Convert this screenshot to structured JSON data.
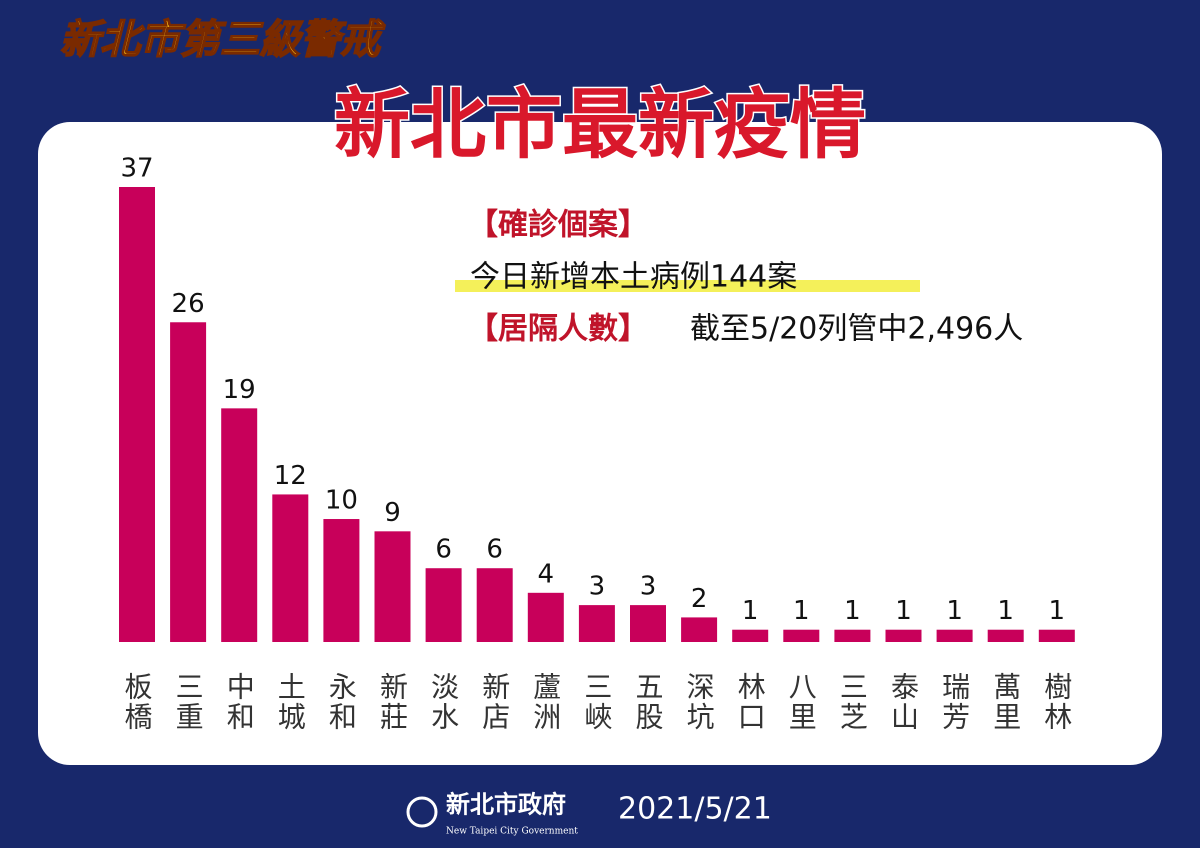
{
  "header": {
    "alert": "新北市第三級警戒",
    "title": "新北市最新疫情"
  },
  "info": {
    "cases_label": "【確診個案】",
    "cases_text": "今日新增本土病例144案",
    "quarantine_label": "【居隔人數】",
    "quarantine_text": "截至5/20列管中2,496人"
  },
  "chart_data": {
    "type": "bar",
    "color": "#c8005a",
    "categories": [
      "板橋",
      "三重",
      "中和",
      "土城",
      "永和",
      "新莊",
      "淡水",
      "新店",
      "蘆洲",
      "三峽",
      "五股",
      "深坑",
      "林口",
      "八里",
      "三芝",
      "泰山",
      "瑞芳",
      "萬里",
      "樹林"
    ],
    "values": [
      37,
      26,
      19,
      12,
      10,
      9,
      6,
      6,
      4,
      3,
      3,
      2,
      1,
      1,
      1,
      1,
      1,
      1,
      1
    ]
  },
  "footer": {
    "org": "新北市政府",
    "org_en": "New Taipei City Government",
    "date": "2021/5/21"
  }
}
